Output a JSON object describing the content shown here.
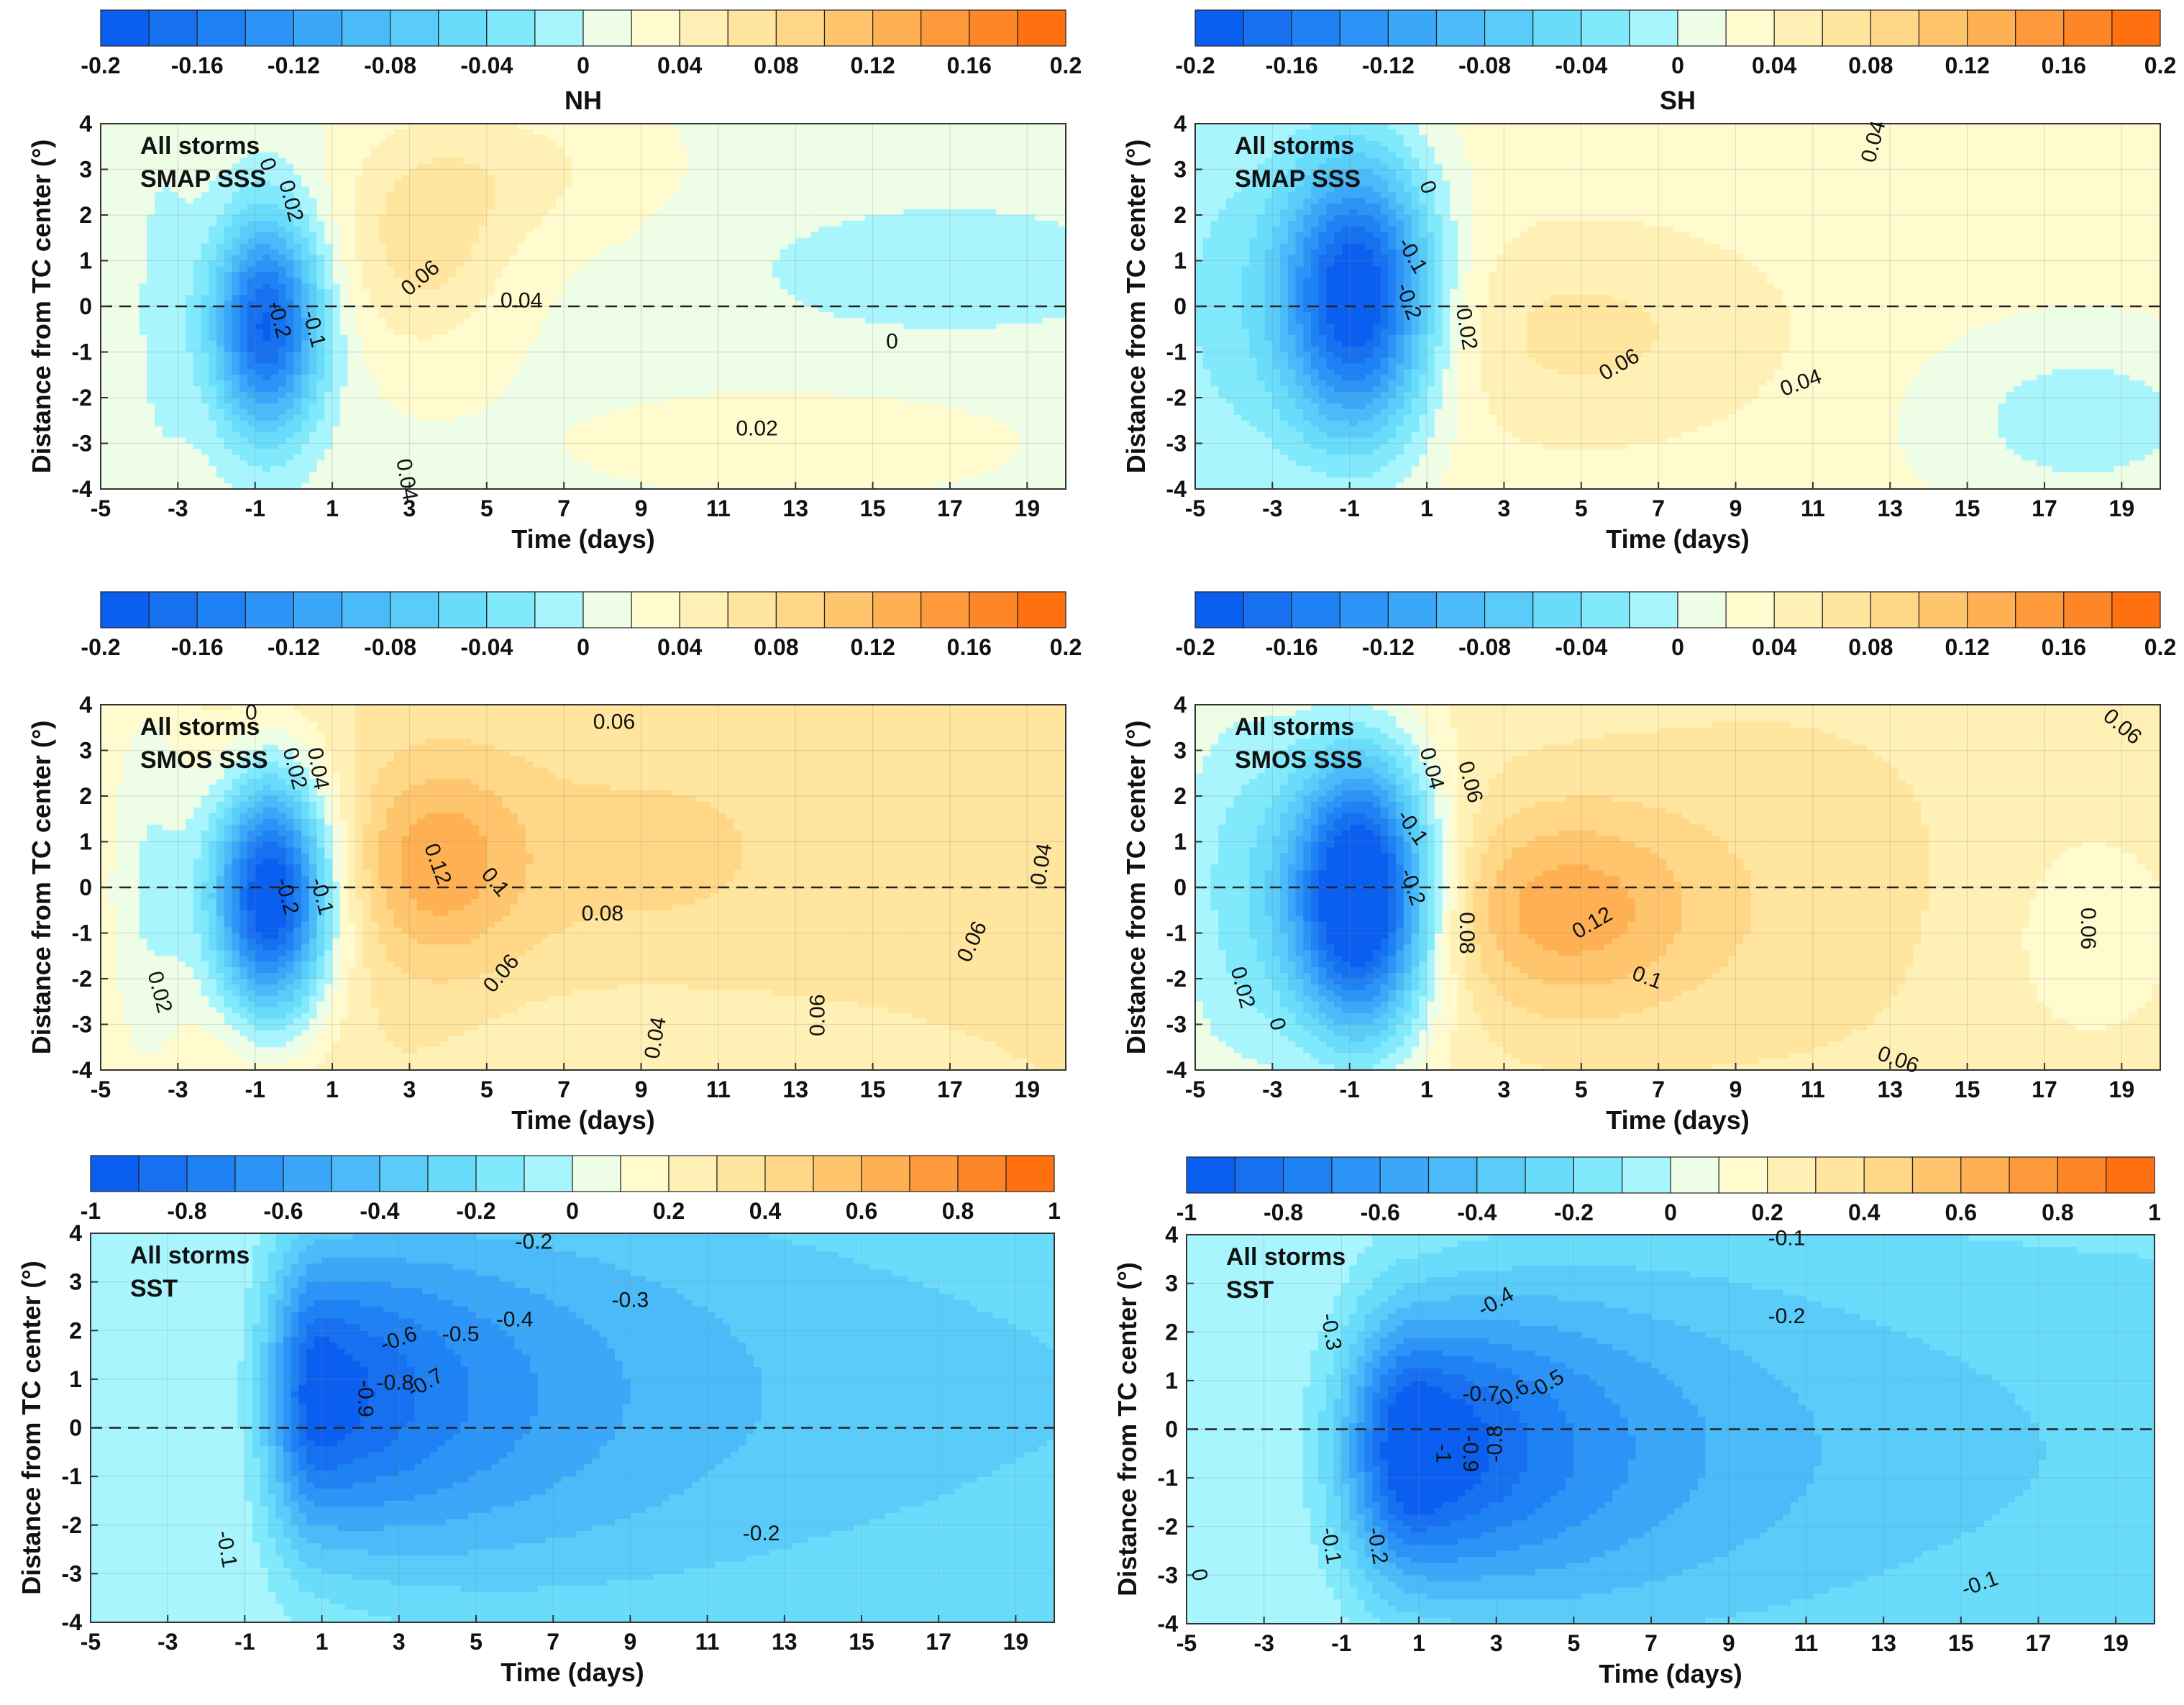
{
  "chart_data": [
    {
      "type": "heatmap",
      "panel": "NH SMAP SSS",
      "title": "NH",
      "annotation": [
        "All storms",
        "SMAP SSS"
      ],
      "xlabel": "Time (days)",
      "ylabel": "Distance from TC center (°)",
      "xlim": [
        -5,
        20
      ],
      "ylim": [
        -4,
        4
      ],
      "xticks": [
        "-5",
        "-3",
        "-1",
        "1",
        "3",
        "5",
        "7",
        "9",
        "11",
        "13",
        "15",
        "17",
        "19"
      ],
      "yticks": [
        "4",
        "3",
        "2",
        "1",
        "0",
        "-1",
        "-2",
        "-3",
        "-4"
      ],
      "colorbar": {
        "ticks": [
          "-0.2",
          "-0.16",
          "-0.12",
          "-0.08",
          "-0.04",
          "0",
          "0.04",
          "0.08",
          "0.12",
          "0.16",
          "0.2"
        ],
        "min": -0.2,
        "max": 0.2,
        "levels": 20
      },
      "background": 0.015,
      "features": [
        {
          "x": -3.4,
          "y": 0,
          "sx": 0.6,
          "sy": 3,
          "a": -0.02
        },
        {
          "x": -0.7,
          "y": -0.4,
          "sx": 1.0,
          "sy": 1.7,
          "a": -0.2
        },
        {
          "x": 3.3,
          "y": 1.2,
          "sx": 1.6,
          "sy": 1.6,
          "a": 0.05
        },
        {
          "x": 5.5,
          "y": 3,
          "sx": 2.5,
          "sy": 1.2,
          "a": 0.03
        },
        {
          "x": 17,
          "y": 0.8,
          "sx": 3.5,
          "sy": 1,
          "a": -0.035
        },
        {
          "x": 13,
          "y": -3,
          "sx": 5,
          "sy": 1,
          "a": 0.01
        }
      ],
      "contour_labels": [
        {
          "text": "0",
          "x": -0.7,
          "y": 3.1,
          "rot": 70
        },
        {
          "text": "0.02",
          "x": -0.1,
          "y": 2.3,
          "rot": 75
        },
        {
          "text": "0.06",
          "x": 3.3,
          "y": 0.6,
          "rot": -40
        },
        {
          "text": "0.04",
          "x": 5.9,
          "y": 0.1,
          "rot": 0
        },
        {
          "text": "0",
          "x": 15.5,
          "y": -0.8,
          "rot": 0
        },
        {
          "text": "0.02",
          "x": 12.0,
          "y": -2.7,
          "rot": 0
        },
        {
          "text": "0.04",
          "x": 2.9,
          "y": -3.8,
          "rot": 80
        },
        {
          "text": "-0.2",
          "x": -0.4,
          "y": -0.3,
          "rot": 75
        },
        {
          "text": "-0.1",
          "x": 0.5,
          "y": -0.5,
          "rot": 75
        }
      ]
    },
    {
      "type": "heatmap",
      "panel": "SH SMAP SSS",
      "title": "SH",
      "annotation": [
        "All storms",
        "SMAP SSS"
      ],
      "xlabel": "Time (days)",
      "ylabel": "Distance from TC center (°)",
      "xlim": [
        -5,
        20
      ],
      "ylim": [
        -4,
        4
      ],
      "xticks": [
        "-5",
        "-3",
        "-1",
        "1",
        "3",
        "5",
        "7",
        "9",
        "11",
        "13",
        "15",
        "17",
        "19"
      ],
      "yticks": [
        "4",
        "3",
        "2",
        "1",
        "0",
        "-1",
        "-2",
        "-3",
        "-4"
      ],
      "colorbar": {
        "ticks": [
          "-0.2",
          "-0.16",
          "-0.12",
          "-0.08",
          "-0.04",
          "0",
          "0.04",
          "0.08",
          "0.12",
          "0.16",
          "0.2"
        ],
        "min": -0.2,
        "max": 0.2,
        "levels": 20
      },
      "background": 0.03,
      "features": [
        {
          "x": -0.8,
          "y": 0.2,
          "sx": 1.4,
          "sy": 2.2,
          "a": -0.24
        },
        {
          "x": -4.5,
          "y": 0,
          "sx": 1.8,
          "sy": 4,
          "a": -0.05
        },
        {
          "x": 5,
          "y": -0.6,
          "sx": 3.5,
          "sy": 1.6,
          "a": 0.035
        },
        {
          "x": 18,
          "y": -2.5,
          "sx": 3,
          "sy": 1.5,
          "a": -0.04
        }
      ],
      "contour_labels": [
        {
          "text": "0",
          "x": 1.0,
          "y": 2.6,
          "rot": 70
        },
        {
          "text": "0.04",
          "x": 12.6,
          "y": 3.6,
          "rot": -75
        },
        {
          "text": "-0.1",
          "x": 0.6,
          "y": 1.1,
          "rot": 60
        },
        {
          "text": "-0.2",
          "x": 0.5,
          "y": 0.1,
          "rot": 70
        },
        {
          "text": "0.02",
          "x": 2.0,
          "y": -0.5,
          "rot": 80
        },
        {
          "text": "0.06",
          "x": 6.0,
          "y": -1.3,
          "rot": -30
        },
        {
          "text": "0.04",
          "x": 10.7,
          "y": -1.7,
          "rot": -20
        }
      ]
    },
    {
      "type": "heatmap",
      "panel": "NH SMOS SSS",
      "annotation": [
        "All storms",
        "SMOS  SSS"
      ],
      "xlabel": "Time (days)",
      "ylabel": "Distance from TC center (°)",
      "xlim": [
        -5,
        20
      ],
      "ylim": [
        -4,
        4
      ],
      "xticks": [
        "-5",
        "-3",
        "-1",
        "1",
        "3",
        "5",
        "7",
        "9",
        "11",
        "13",
        "15",
        "17",
        "19"
      ],
      "yticks": [
        "4",
        "3",
        "2",
        "1",
        "0",
        "-1",
        "-2",
        "-3",
        "-4"
      ],
      "colorbar": {
        "ticks": [
          "-0.2",
          "-0.16",
          "-0.12",
          "-0.08",
          "-0.04",
          "0",
          "0.04",
          "0.08",
          "0.12",
          "0.16",
          "0.2"
        ],
        "min": -0.2,
        "max": 0.2,
        "levels": 20
      },
      "background": 0.06,
      "features": [
        {
          "x": -0.6,
          "y": -0.2,
          "sx": 1.1,
          "sy": 1.9,
          "a": -0.27
        },
        {
          "x": -3.8,
          "y": 0,
          "sx": 1.0,
          "sy": 4,
          "a": -0.06
        },
        {
          "x": 3.7,
          "y": 0.5,
          "sx": 1.6,
          "sy": 1.6,
          "a": 0.065
        },
        {
          "x": 9,
          "y": 0.8,
          "sx": 4,
          "sy": 2,
          "a": 0.025
        },
        {
          "x": 9,
          "y": -3.5,
          "sx": 3,
          "sy": 1,
          "a": -0.02
        }
      ],
      "contour_labels": [
        {
          "text": "0",
          "x": -1.1,
          "y": 3.8,
          "rot": 0
        },
        {
          "text": "0.02",
          "x": 0.0,
          "y": 2.6,
          "rot": 75
        },
        {
          "text": "0.04",
          "x": 0.6,
          "y": 2.6,
          "rot": 80
        },
        {
          "text": "0.06",
          "x": 8.3,
          "y": 3.6,
          "rot": 0
        },
        {
          "text": "0.12",
          "x": 3.7,
          "y": 0.5,
          "rot": 70
        },
        {
          "text": "0.1",
          "x": 5.2,
          "y": 0.1,
          "rot": 50
        },
        {
          "text": "0.08",
          "x": 8.0,
          "y": -0.6,
          "rot": 0
        },
        {
          "text": "0.06",
          "x": 5.4,
          "y": -1.9,
          "rot": -50
        },
        {
          "text": "-0.2",
          "x": -0.2,
          "y": -0.2,
          "rot": 75
        },
        {
          "text": "-0.1",
          "x": 0.7,
          "y": -0.2,
          "rot": 75
        },
        {
          "text": "0.02",
          "x": -3.5,
          "y": -2.3,
          "rot": 75
        },
        {
          "text": "0.04",
          "x": 9.4,
          "y": -3.3,
          "rot": -80
        },
        {
          "text": "0.06",
          "x": 13.6,
          "y": -2.8,
          "rot": -90
        },
        {
          "text": "0.06",
          "x": 17.6,
          "y": -1.2,
          "rot": -65
        },
        {
          "text": "0.04",
          "x": 19.4,
          "y": 0.5,
          "rot": -80
        }
      ]
    },
    {
      "type": "heatmap",
      "panel": "SH SMOS SSS",
      "annotation": [
        "All storms",
        "SMOS  SSS"
      ],
      "xlabel": "Time (days)",
      "ylabel": "Distance from TC center (°)",
      "xlim": [
        -5,
        20
      ],
      "ylim": [
        -4,
        4
      ],
      "xticks": [
        "-5",
        "-3",
        "-1",
        "1",
        "3",
        "5",
        "7",
        "9",
        "11",
        "13",
        "15",
        "17",
        "19"
      ],
      "yticks": [
        "4",
        "3",
        "2",
        "1",
        "0",
        "-1",
        "-2",
        "-3",
        "-4"
      ],
      "colorbar": {
        "ticks": [
          "-0.2",
          "-0.16",
          "-0.12",
          "-0.08",
          "-0.04",
          "0",
          "0.04",
          "0.08",
          "0.12",
          "0.16",
          "0.2"
        ],
        "min": -0.2,
        "max": 0.2,
        "levels": 20
      },
      "background": 0.05,
      "features": [
        {
          "x": -0.7,
          "y": -0.2,
          "sx": 1.3,
          "sy": 2.2,
          "a": -0.29
        },
        {
          "x": -4,
          "y": 0,
          "sx": 1.6,
          "sy": 4,
          "a": -0.07
        },
        {
          "x": 4.5,
          "y": -0.5,
          "sx": 2.5,
          "sy": 1.6,
          "a": 0.075
        },
        {
          "x": 10,
          "y": 0,
          "sx": 4,
          "sy": 3,
          "a": 0.02
        },
        {
          "x": 18,
          "y": -1,
          "sx": 2,
          "sy": 2,
          "a": -0.02
        }
      ],
      "contour_labels": [
        {
          "text": "0.06",
          "x": 19.0,
          "y": 3.5,
          "rot": 40
        },
        {
          "text": "0.04",
          "x": 1.1,
          "y": 2.6,
          "rot": 75
        },
        {
          "text": "0.06",
          "x": 2.1,
          "y": 2.3,
          "rot": 75
        },
        {
          "text": "-0.1",
          "x": 0.6,
          "y": 1.3,
          "rot": 55
        },
        {
          "text": "-0.2",
          "x": 0.6,
          "y": 0.0,
          "rot": 70
        },
        {
          "text": "0.08",
          "x": 2.0,
          "y": -1.0,
          "rot": 90
        },
        {
          "text": "0.12",
          "x": 5.3,
          "y": -0.8,
          "rot": -30
        },
        {
          "text": "0.1",
          "x": 6.7,
          "y": -2.0,
          "rot": 20
        },
        {
          "text": "0.06",
          "x": 18.1,
          "y": -0.9,
          "rot": 90
        },
        {
          "text": "0.02",
          "x": -3.8,
          "y": -2.2,
          "rot": 75
        },
        {
          "text": "0",
          "x": -2.9,
          "y": -3.0,
          "rot": 75
        },
        {
          "text": "0.06",
          "x": 13.2,
          "y": -3.8,
          "rot": 20
        }
      ]
    },
    {
      "type": "heatmap",
      "panel": "NH SST",
      "annotation": [
        "All storms",
        "SST"
      ],
      "xlabel": "Time (days)",
      "ylabel": "Distance from TC center (°)",
      "xlim": [
        -5,
        20
      ],
      "ylim": [
        -4,
        4
      ],
      "xticks": [
        "-5",
        "-3",
        "-1",
        "1",
        "3",
        "5",
        "7",
        "9",
        "11",
        "13",
        "15",
        "17",
        "19"
      ],
      "yticks": [
        "4",
        "3",
        "2",
        "1",
        "0",
        "-1",
        "-2",
        "-3",
        "-4"
      ],
      "colorbar": {
        "ticks": [
          "-1",
          "-0.8",
          "-0.6",
          "-0.4",
          "-0.2",
          "0",
          "0.2",
          "0.4",
          "0.6",
          "0.8",
          "1"
        ],
        "min": -1,
        "max": 1,
        "levels": 20
      },
      "sst": {
        "t0": 1,
        "y0": 0.7,
        "a": -0.95,
        "rise": 1.0,
        "base": -0.14,
        "decay": 0.09,
        "width0": 2.2,
        "widthGrow": 0.18
      },
      "contour_labels": [
        {
          "text": "-0.2",
          "x": 6.5,
          "y": 3.8,
          "rot": 0
        },
        {
          "text": "-0.3",
          "x": 9.0,
          "y": 2.6,
          "rot": 0
        },
        {
          "text": "-0.4",
          "x": 6.0,
          "y": 2.2,
          "rot": 0
        },
        {
          "text": "-0.5",
          "x": 4.6,
          "y": 1.9,
          "rot": 0
        },
        {
          "text": "-0.6",
          "x": 3.0,
          "y": 1.8,
          "rot": -20
        },
        {
          "text": "-0.7",
          "x": 3.7,
          "y": 0.9,
          "rot": -30
        },
        {
          "text": "-0.8",
          "x": 2.9,
          "y": 0.9,
          "rot": 0
        },
        {
          "text": "-0.9",
          "x": 2.1,
          "y": 0.6,
          "rot": 90
        },
        {
          "text": "-0.1",
          "x": -1.5,
          "y": -2.5,
          "rot": 80
        },
        {
          "text": "-0.2",
          "x": 12.4,
          "y": -2.2,
          "rot": 0
        }
      ]
    },
    {
      "type": "heatmap",
      "panel": "SH SST",
      "annotation": [
        "All storms",
        "SST"
      ],
      "xlabel": "Time (days)",
      "ylabel": "Distance from TC center (°)",
      "xlim": [
        -5,
        20
      ],
      "ylim": [
        -4,
        4
      ],
      "xticks": [
        "-5",
        "-3",
        "-1",
        "1",
        "3",
        "5",
        "7",
        "9",
        "11",
        "13",
        "15",
        "17",
        "19"
      ],
      "yticks": [
        "4",
        "3",
        "2",
        "1",
        "0",
        "-1",
        "-2",
        "-3",
        "-4"
      ],
      "colorbar": {
        "ticks": [
          "-1",
          "-0.8",
          "-0.6",
          "-0.4",
          "-0.2",
          "0",
          "0.2",
          "0.4",
          "0.6",
          "0.8",
          "1"
        ],
        "min": -1,
        "max": 1,
        "levels": 20
      },
      "sst": {
        "t0": 1,
        "y0": -0.4,
        "a": -1.05,
        "rise": 1.4,
        "base": -0.12,
        "decay": 0.1,
        "width0": 2.0,
        "widthGrow": 0.17
      },
      "contour_labels": [
        {
          "text": "-0.1",
          "x": 10.5,
          "y": 3.9,
          "rot": 0
        },
        {
          "text": "-0.3",
          "x": -1.3,
          "y": 2.0,
          "rot": 80
        },
        {
          "text": "-0.4",
          "x": 3.0,
          "y": 2.6,
          "rot": -30
        },
        {
          "text": "-0.2",
          "x": 10.5,
          "y": 2.3,
          "rot": 0
        },
        {
          "text": "-0.5",
          "x": 4.3,
          "y": 0.9,
          "rot": -30
        },
        {
          "text": "-0.6",
          "x": 3.4,
          "y": 0.7,
          "rot": -30
        },
        {
          "text": "-0.7",
          "x": 2.6,
          "y": 0.7,
          "rot": 0
        },
        {
          "text": "-0.8",
          "x": 3.0,
          "y": -0.3,
          "rot": -90
        },
        {
          "text": "-0.9",
          "x": 2.3,
          "y": -0.5,
          "rot": 90
        },
        {
          "text": "-1",
          "x": 1.6,
          "y": -0.5,
          "rot": 90
        },
        {
          "text": "-0.1",
          "x": -1.3,
          "y": -2.4,
          "rot": 80
        },
        {
          "text": "-0.2",
          "x": -0.1,
          "y": -2.4,
          "rot": 80
        },
        {
          "text": "0",
          "x": -4.7,
          "y": -3.0,
          "rot": 80
        },
        {
          "text": "-0.1",
          "x": 15.5,
          "y": -3.2,
          "rot": -20
        }
      ]
    }
  ]
}
